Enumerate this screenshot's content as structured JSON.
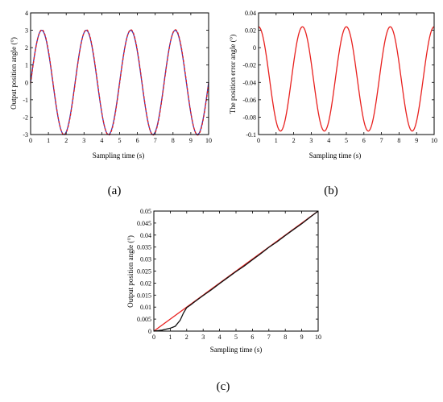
{
  "colors": {
    "red": "#e8211f",
    "blue": "#3a35b8",
    "black": "#111111",
    "axis": "#000000"
  },
  "chart_data": [
    {
      "panel": "(a)",
      "type": "line",
      "xlabel": "Sampling time (s)",
      "ylabel": "Output position angle (°)",
      "xlim": [
        0,
        10
      ],
      "ylim": [
        -3,
        4
      ],
      "xticks": [
        0,
        1,
        2,
        3,
        4,
        5,
        6,
        7,
        8,
        9,
        10
      ],
      "yticks": [
        -3,
        -2,
        -1,
        0,
        1,
        2,
        3,
        4
      ],
      "grid": false,
      "series": [
        {
          "color": "blue",
          "style": "solid",
          "function": "3*sin(2*pi*0.4*t)",
          "amplitude": 3,
          "frequency_hz": 0.4,
          "peaks_t": [
            0.625,
            3.125,
            5.625,
            8.125
          ],
          "troughs_t": [
            1.875,
            4.375,
            6.875,
            9.375
          ]
        },
        {
          "color": "red",
          "style": "dashed",
          "function": "3.03*sin(2*pi*0.4*(t-0.008))",
          "amplitude": 3.03,
          "frequency_hz": 0.4
        }
      ]
    },
    {
      "panel": "(b)",
      "type": "line",
      "xlabel": "Sampling time (s)",
      "ylabel": "The position error angle (°)",
      "xlim": [
        0,
        10
      ],
      "ylim": [
        -0.1,
        0.04
      ],
      "xticks": [
        0,
        1,
        2,
        3,
        4,
        5,
        6,
        7,
        8,
        9,
        10
      ],
      "yticks": [
        -0.1,
        -0.08,
        -0.06,
        -0.04,
        -0.02,
        0,
        0.02,
        0.04
      ],
      "grid": false,
      "series": [
        {
          "color": "red",
          "style": "solid",
          "function": "-0.036 + 0.06*cos(2*pi*0.4*t)",
          "max": 0.024,
          "min": -0.096,
          "peaks_t": [
            0,
            2.5,
            5,
            7.5,
            10
          ],
          "troughs_t": [
            1.25,
            3.75,
            6.25,
            8.75
          ]
        }
      ]
    },
    {
      "panel": "(c)",
      "type": "line",
      "xlabel": "Sampling time (s)",
      "ylabel": "Output position angle (°)",
      "xlim": [
        0,
        10
      ],
      "ylim": [
        0,
        0.05
      ],
      "xticks": [
        0,
        1,
        2,
        3,
        4,
        5,
        6,
        7,
        8,
        9,
        10
      ],
      "yticks": [
        0,
        0.005,
        0.01,
        0.015,
        0.02,
        0.025,
        0.03,
        0.035,
        0.04,
        0.045,
        0.05
      ],
      "grid": false,
      "series": [
        {
          "color": "red",
          "style": "solid",
          "x": [
            0,
            10
          ],
          "y": [
            0,
            0.05
          ]
        },
        {
          "color": "black",
          "style": "solid",
          "x": [
            0,
            0.5,
            1.0,
            1.3,
            1.6,
            1.8,
            2.0,
            2.2,
            2.5,
            3.0,
            3.5,
            4.0,
            4.5,
            5.0,
            5.5,
            6.0,
            6.5,
            7.0,
            7.5,
            8.0,
            8.5,
            9.0,
            9.5,
            10
          ],
          "y": [
            0,
            0.0004,
            0.0012,
            0.002,
            0.0045,
            0.0075,
            0.0098,
            0.0107,
            0.0123,
            0.0148,
            0.0172,
            0.0198,
            0.0223,
            0.0248,
            0.0271,
            0.0297,
            0.0322,
            0.0349,
            0.0372,
            0.0398,
            0.0423,
            0.0447,
            0.0474,
            0.05
          ]
        }
      ]
    }
  ]
}
